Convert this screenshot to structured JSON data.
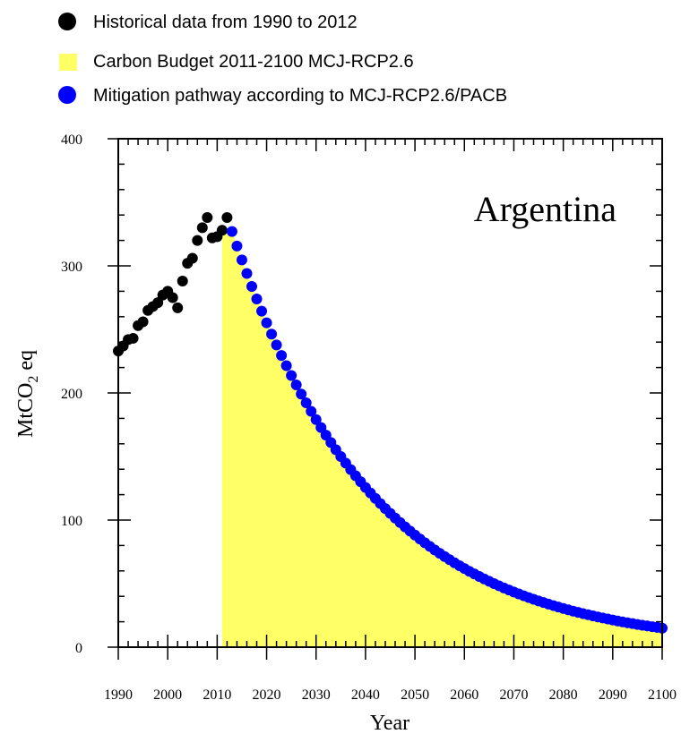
{
  "chart_data": {
    "type": "scatter",
    "annotation": "Argentina",
    "xlabel": "Year",
    "ylabel": {
      "main": "MtCO",
      "subscript": "2",
      "suffix": " eq"
    },
    "xlim": [
      1990,
      2100
    ],
    "ylim": [
      0,
      400
    ],
    "x_ticks": [
      1990,
      2000,
      2010,
      2020,
      2030,
      2040,
      2050,
      2060,
      2070,
      2080,
      2090,
      2100
    ],
    "y_ticks": [
      0,
      100,
      200,
      300,
      400
    ],
    "grid": false,
    "legend_position": "top",
    "legend": [
      {
        "label": "Historical data from 1990 to 2012",
        "marker": "circle",
        "color": "#000000"
      },
      {
        "label": "Carbon Budget 2011-2100 MCJ-RCP2.6",
        "marker": "square",
        "color": "#ffff66"
      },
      {
        "label": "Mitigation pathway according to MCJ-RCP2.6/PACB",
        "marker": "circle",
        "color": "#0000ff"
      }
    ],
    "series": [
      {
        "name": "Historical data from 1990 to 2012",
        "color": "#000000",
        "x": [
          1990,
          1991,
          1992,
          1993,
          1994,
          1995,
          1996,
          1997,
          1998,
          1999,
          2000,
          2001,
          2002,
          2003,
          2004,
          2005,
          2006,
          2007,
          2008,
          2009,
          2010,
          2011,
          2012
        ],
        "y": [
          233,
          237,
          242,
          243,
          253,
          256,
          265,
          268,
          271,
          277,
          280,
          275,
          267,
          288,
          302,
          306,
          320,
          330,
          338,
          322,
          323,
          328,
          338
        ]
      },
      {
        "name": "Mitigation pathway according to MCJ-RCP2.6/PACB",
        "color": "#0000ff",
        "x_start": 2013,
        "x_end": 2100,
        "y_start": 327,
        "y_end": 15
      },
      {
        "name": "Carbon Budget 2011-2100 MCJ-RCP2.6",
        "color": "#ffff66",
        "area_start": 2011,
        "area_end": 2100
      }
    ]
  }
}
